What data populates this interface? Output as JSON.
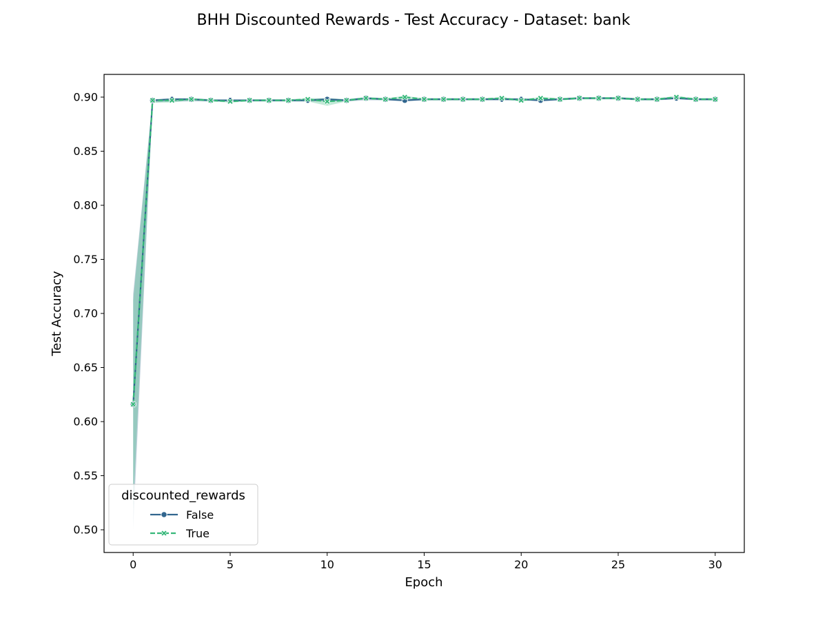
{
  "chart_data": {
    "type": "line",
    "title": "BHH Discounted Rewards - Test Accuracy - Dataset: bank",
    "xlabel": "Epoch",
    "ylabel": "Test Accuracy",
    "xlim": [
      -1.5,
      31.5
    ],
    "ylim": [
      0.479,
      0.921
    ],
    "x_ticks": [
      0,
      5,
      10,
      15,
      20,
      25,
      30
    ],
    "x_tick_labels": [
      "0",
      "5",
      "10",
      "15",
      "20",
      "25",
      "30"
    ],
    "y_ticks": [
      0.5,
      0.55,
      0.6,
      0.65,
      0.7,
      0.75,
      0.8,
      0.85,
      0.9
    ],
    "y_tick_labels": [
      "0.50",
      "0.55",
      "0.60",
      "0.65",
      "0.70",
      "0.75",
      "0.80",
      "0.85",
      "0.90"
    ],
    "grid": false,
    "legend": {
      "title": "discounted_rewards",
      "placement": "lower-left"
    },
    "x": [
      0,
      1,
      2,
      3,
      4,
      5,
      6,
      7,
      8,
      9,
      10,
      11,
      12,
      13,
      14,
      15,
      16,
      17,
      18,
      19,
      20,
      21,
      22,
      23,
      24,
      25,
      26,
      27,
      28,
      29,
      30
    ],
    "series": [
      {
        "name": "False",
        "color": "#31668e",
        "marker": "circle",
        "line_style": "solid",
        "values": [
          0.616,
          0.897,
          0.898,
          0.898,
          0.897,
          0.897,
          0.897,
          0.897,
          0.897,
          0.897,
          0.898,
          0.897,
          0.899,
          0.898,
          0.897,
          0.898,
          0.898,
          0.898,
          0.898,
          0.898,
          0.898,
          0.897,
          0.898,
          0.899,
          0.899,
          0.899,
          0.898,
          0.898,
          0.899,
          0.898,
          0.898
        ],
        "band_lower": [
          0.5,
          0.895,
          0.896,
          0.896,
          0.896,
          0.896,
          0.896,
          0.896,
          0.896,
          0.896,
          0.896,
          0.896,
          0.897,
          0.897,
          0.896,
          0.897,
          0.897,
          0.897,
          0.897,
          0.897,
          0.897,
          0.896,
          0.897,
          0.898,
          0.898,
          0.898,
          0.897,
          0.897,
          0.898,
          0.897,
          0.897
        ],
        "band_upper": [
          0.718,
          0.898,
          0.899,
          0.899,
          0.898,
          0.898,
          0.898,
          0.898,
          0.898,
          0.898,
          0.899,
          0.898,
          0.9,
          0.899,
          0.898,
          0.899,
          0.899,
          0.899,
          0.899,
          0.899,
          0.899,
          0.898,
          0.899,
          0.9,
          0.9,
          0.9,
          0.899,
          0.899,
          0.9,
          0.899,
          0.899
        ]
      },
      {
        "name": "True",
        "color": "#35b779",
        "marker": "x",
        "line_style": "dashed",
        "values": [
          0.616,
          0.897,
          0.897,
          0.898,
          0.897,
          0.896,
          0.897,
          0.897,
          0.897,
          0.898,
          0.896,
          0.897,
          0.899,
          0.898,
          0.9,
          0.898,
          0.898,
          0.898,
          0.898,
          0.899,
          0.897,
          0.899,
          0.898,
          0.899,
          0.899,
          0.899,
          0.898,
          0.898,
          0.9,
          0.898,
          0.898
        ],
        "band_lower": [
          0.52,
          0.895,
          0.895,
          0.897,
          0.896,
          0.895,
          0.896,
          0.896,
          0.896,
          0.896,
          0.892,
          0.896,
          0.898,
          0.897,
          0.898,
          0.897,
          0.897,
          0.897,
          0.897,
          0.898,
          0.896,
          0.898,
          0.897,
          0.898,
          0.898,
          0.898,
          0.897,
          0.897,
          0.899,
          0.897,
          0.897
        ],
        "band_upper": [
          0.712,
          0.898,
          0.898,
          0.899,
          0.898,
          0.897,
          0.898,
          0.898,
          0.898,
          0.899,
          0.899,
          0.898,
          0.9,
          0.899,
          0.901,
          0.899,
          0.899,
          0.899,
          0.899,
          0.9,
          0.898,
          0.9,
          0.899,
          0.9,
          0.9,
          0.9,
          0.899,
          0.899,
          0.901,
          0.899,
          0.899
        ]
      }
    ]
  }
}
